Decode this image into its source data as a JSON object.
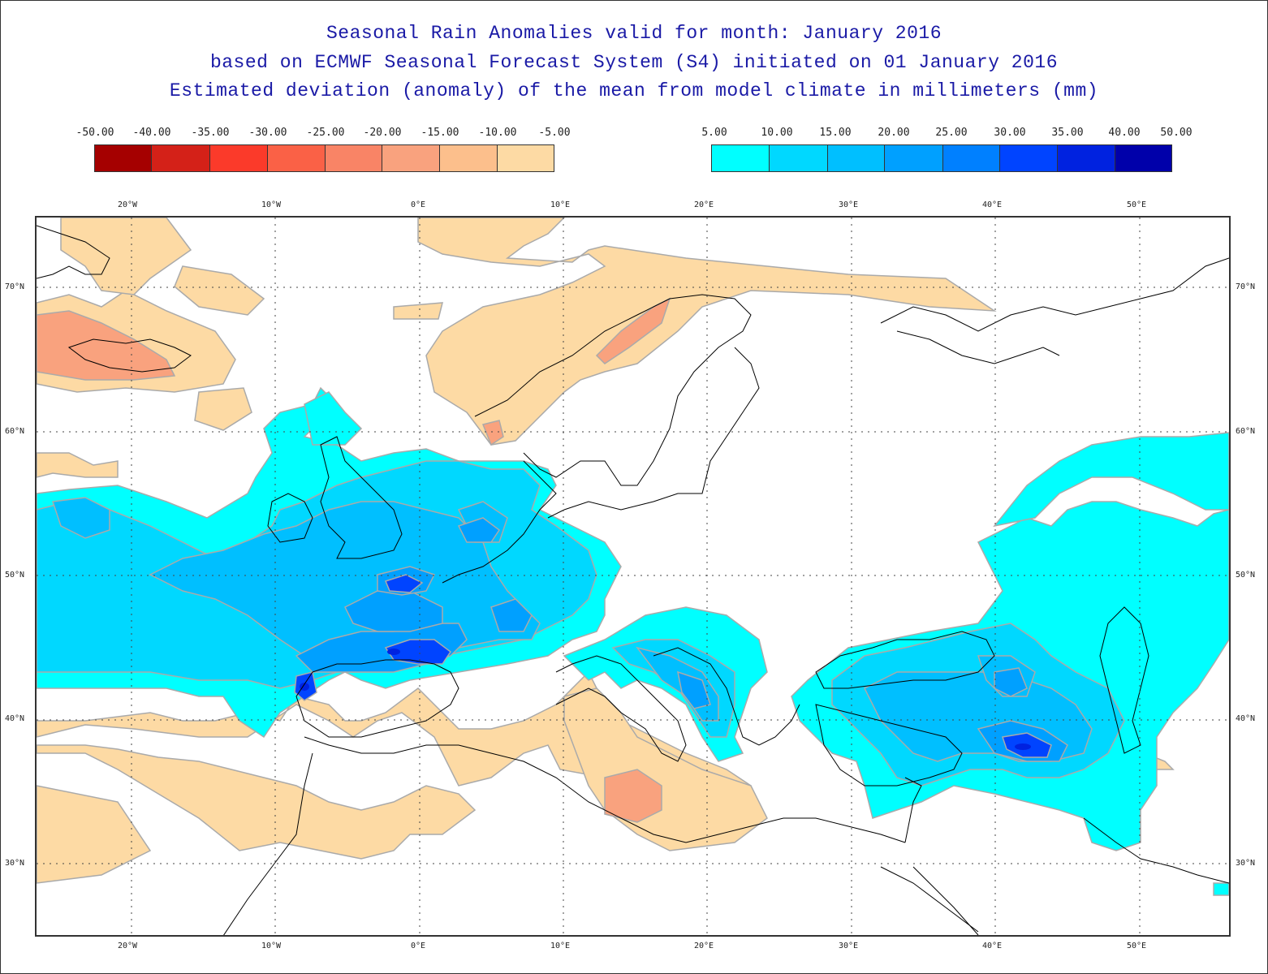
{
  "title": {
    "line1": "Seasonal Rain Anomalies valid for month: January 2016",
    "line2": "based on ECMWF Seasonal Forecast System (S4) initiated on 01 January 2016",
    "line3": "Estimated deviation (anomaly) of the mean from model climate in millimeters (mm)"
  },
  "legend": {
    "negative": {
      "labels": [
        "-50.00",
        "-40.00",
        "-35.00",
        "-30.00",
        "-25.00",
        "-20.00",
        "-15.00",
        "-10.00",
        "-5.00"
      ],
      "colors": [
        "#a50000",
        "#d42118",
        "#fb3a2a",
        "#fa6146",
        "#f98466",
        "#f9a27e",
        "#fcbf8c",
        "#fddaa4"
      ]
    },
    "positive": {
      "labels": [
        "5.00",
        "10.00",
        "15.00",
        "20.00",
        "25.00",
        "30.00",
        "35.00",
        "40.00",
        "50.00"
      ],
      "colors": [
        "#00ffff",
        "#00d8ff",
        "#00bfff",
        "#00a0ff",
        "#0080ff",
        "#0044ff",
        "#0022e0",
        "#0000aa"
      ]
    }
  },
  "axes": {
    "longitudes": [
      "20°W",
      "10°W",
      "0°E",
      "10°E",
      "20°E",
      "30°E",
      "40°E",
      "50°E"
    ],
    "latitudes": [
      "70°N",
      "60°N",
      "50°N",
      "40°N",
      "30°N"
    ]
  },
  "regions": {
    "wet_max_north_spain": "-",
    "colors": {
      "light_orange": "#fddaa4",
      "orange": "#f9a27e",
      "cyan": "#00ffff",
      "light_blue": "#00d8ff",
      "mid_blue": "#00bfff",
      "blue": "#00a0ff",
      "deep_blue": "#0044ff",
      "darkest_blue": "#0022e0",
      "contour": "#aaaaaa",
      "coast": "#000000",
      "grid": "#444444"
    }
  }
}
